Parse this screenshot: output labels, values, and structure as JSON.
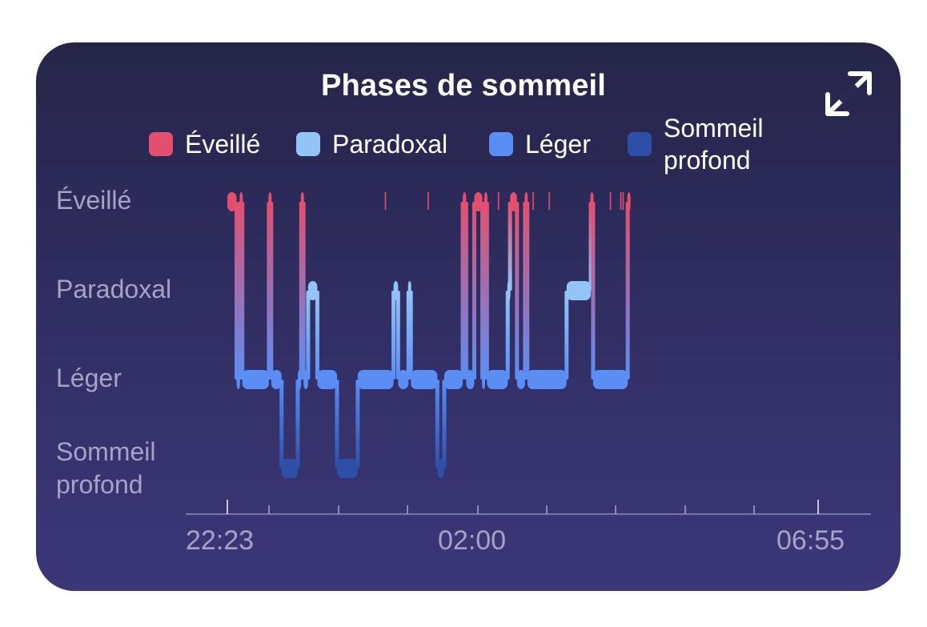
{
  "colors": {
    "awake": "#e3506f",
    "rem": "#93c4f7",
    "light": "#5b8ef4",
    "deep": "#2e4fa6",
    "background_top": "#262549",
    "background_bottom": "#3c3779",
    "axis_text": "#a6a3c8"
  },
  "expand_icon": "expand-arrows-icon",
  "chart_data": {
    "type": "hypnogram",
    "title": "Phases de sommeil",
    "legend": [
      "Éveillé",
      "Paradoxal",
      "Léger",
      "Sommeil profond"
    ],
    "legend_display": [
      {
        "line1": "Éveillé",
        "line2": ""
      },
      {
        "line1": "Paradoxal",
        "line2": ""
      },
      {
        "line1": "Léger",
        "line2": ""
      },
      {
        "line1": "Sommeil",
        "line2": "profond"
      }
    ],
    "stages": [
      "Éveillé",
      "Paradoxal",
      "Léger",
      "Sommeil profond"
    ],
    "y_labels": [
      {
        "line1": "Éveillé",
        "line2": ""
      },
      {
        "line1": "Paradoxal",
        "line2": ""
      },
      {
        "line1": "Léger",
        "line2": ""
      },
      {
        "line1": "Sommeil",
        "line2": "profond"
      }
    ],
    "x_tick_labels": [
      "22:23",
      "02:00",
      "06:55"
    ],
    "x_range": [
      "22:23",
      "06:55"
    ],
    "segments": [
      {
        "stage": "Éveillé",
        "start": "22:23",
        "end": "22:31"
      },
      {
        "stage": "Léger",
        "start": "22:31",
        "end": "22:34"
      },
      {
        "stage": "Éveillé",
        "start": "22:34",
        "end": "22:36"
      },
      {
        "stage": "Léger",
        "start": "22:36",
        "end": "22:59"
      },
      {
        "stage": "Éveillé",
        "start": "22:59",
        "end": "23:01"
      },
      {
        "stage": "Léger",
        "start": "23:01",
        "end": "23:10"
      },
      {
        "stage": "Sommeil profond",
        "start": "23:10",
        "end": "23:24"
      },
      {
        "stage": "Léger",
        "start": "23:24",
        "end": "23:27"
      },
      {
        "stage": "Éveillé",
        "start": "23:27",
        "end": "23:29"
      },
      {
        "stage": "Léger",
        "start": "23:29",
        "end": "23:33"
      },
      {
        "stage": "Paradoxal",
        "start": "23:33",
        "end": "23:41"
      },
      {
        "stage": "Léger",
        "start": "23:41",
        "end": "23:58"
      },
      {
        "stage": "Sommeil profond",
        "start": "23:58",
        "end": "00:16"
      },
      {
        "stage": "Léger",
        "start": "00:16",
        "end": "00:47"
      },
      {
        "stage": "Paradoxal",
        "start": "00:47",
        "end": "00:51"
      },
      {
        "stage": "Léger",
        "start": "00:51",
        "end": "01:00"
      },
      {
        "stage": "Paradoxal",
        "start": "01:00",
        "end": "01:02"
      },
      {
        "stage": "Léger",
        "start": "01:02",
        "end": "01:25"
      },
      {
        "stage": "Sommeil profond",
        "start": "01:25",
        "end": "01:31"
      },
      {
        "stage": "Léger",
        "start": "01:31",
        "end": "01:47"
      },
      {
        "stage": "Éveillé",
        "start": "01:47",
        "end": "01:50"
      },
      {
        "stage": "Léger",
        "start": "01:50",
        "end": "01:57"
      },
      {
        "stage": "Éveillé",
        "start": "01:57",
        "end": "02:04"
      },
      {
        "stage": "Léger",
        "start": "02:04",
        "end": "02:06"
      },
      {
        "stage": "Éveillé",
        "start": "02:06",
        "end": "02:08"
      },
      {
        "stage": "Léger",
        "start": "02:08",
        "end": "02:26"
      },
      {
        "stage": "Paradoxal",
        "start": "02:26",
        "end": "02:28"
      },
      {
        "stage": "Éveillé",
        "start": "02:28",
        "end": "02:34"
      },
      {
        "stage": "Léger",
        "start": "02:34",
        "end": "02:41"
      },
      {
        "stage": "Éveillé",
        "start": "02:41",
        "end": "02:43"
      },
      {
        "stage": "Léger",
        "start": "02:43",
        "end": "03:17"
      },
      {
        "stage": "Paradoxal",
        "start": "03:17",
        "end": "03:38"
      },
      {
        "stage": "Éveillé",
        "start": "03:38",
        "end": "03:40"
      },
      {
        "stage": "Léger",
        "start": "03:40",
        "end": "04:10"
      },
      {
        "stage": "Éveillé",
        "start": "04:10",
        "end": "04:12"
      }
    ]
  }
}
